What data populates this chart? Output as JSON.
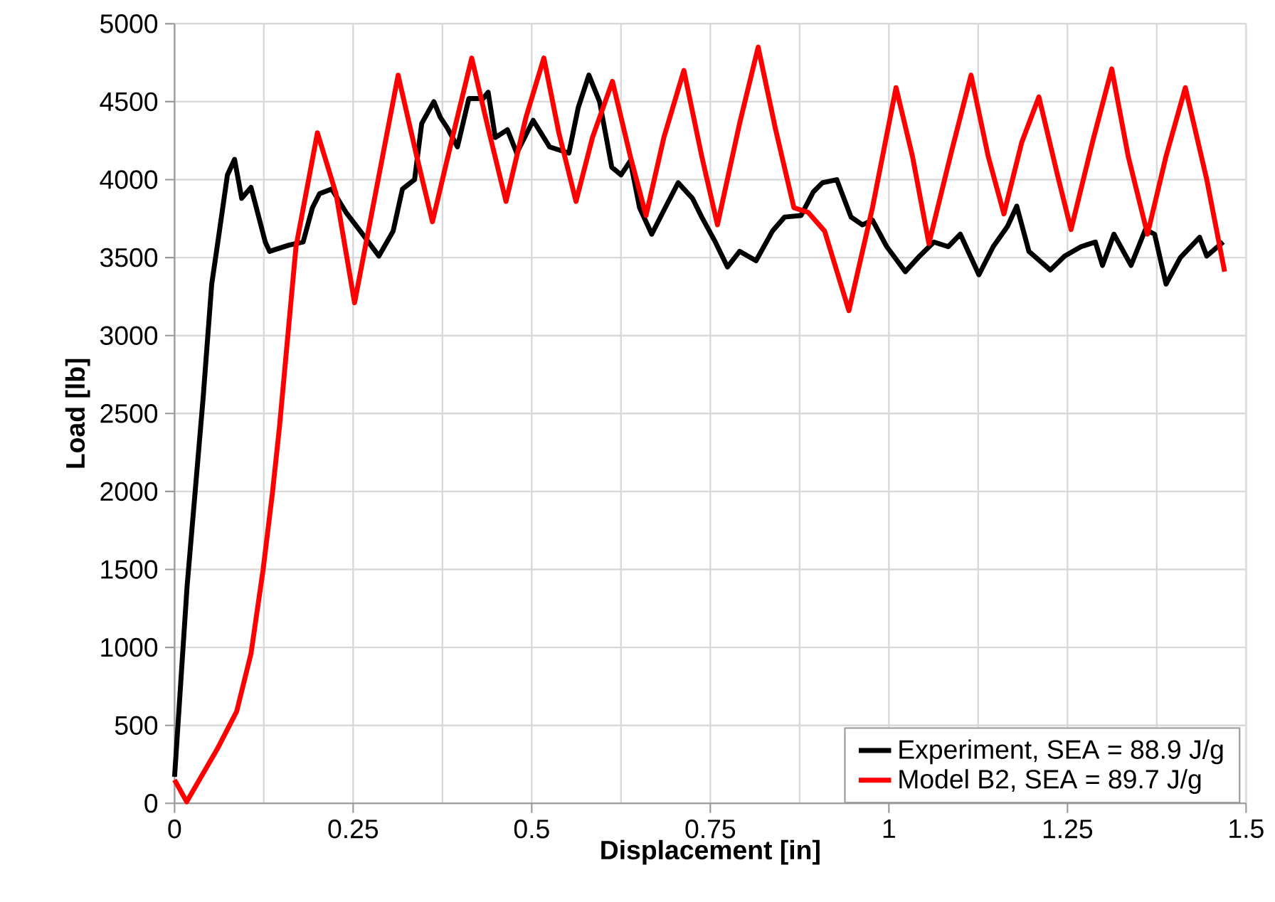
{
  "chart_data": {
    "type": "line",
    "xlabel": "Displacement [in]",
    "ylabel": "Load [lb]",
    "xlim": [
      0,
      1.5
    ],
    "ylim": [
      0,
      5000
    ],
    "xticks": [
      0,
      0.25,
      0.5,
      0.75,
      1,
      1.25,
      1.5
    ],
    "yticks": [
      0,
      500,
      1000,
      1500,
      2000,
      2500,
      3000,
      3500,
      4000,
      4500,
      5000
    ],
    "grid": true,
    "legend": "bottom right",
    "marker": "none",
    "line_style": "solid",
    "series": [
      {
        "name": "Experiment, SEA = 88.9 J/g",
        "color": "#000000",
        "x": [
          0,
          0.0175,
          0.04,
          0.052,
          0.06,
          0.074,
          0.084,
          0.094,
          0.107,
          0.127,
          0.133,
          0.16,
          0.18,
          0.193,
          0.203,
          0.22,
          0.24,
          0.26,
          0.286,
          0.306,
          0.319,
          0.336,
          0.346,
          0.363,
          0.372,
          0.382,
          0.396,
          0.412,
          0.432,
          0.439,
          0.449,
          0.466,
          0.479,
          0.502,
          0.525,
          0.552,
          0.565,
          0.58,
          0.595,
          0.612,
          0.625,
          0.638,
          0.651,
          0.668,
          0.688,
          0.705,
          0.725,
          0.738,
          0.757,
          0.774,
          0.791,
          0.814,
          0.837,
          0.854,
          0.877,
          0.894,
          0.907,
          0.927,
          0.947,
          0.963,
          0.977,
          0.997,
          1.023,
          1.043,
          1.063,
          1.083,
          1.1,
          1.126,
          1.146,
          1.166,
          1.179,
          1.196,
          1.226,
          1.246,
          1.269,
          1.289,
          1.299,
          1.315,
          1.339,
          1.359,
          1.372,
          1.388,
          1.408,
          1.435,
          1.445,
          1.468
        ],
        "values": [
          170,
          1390,
          2600,
          3330,
          3580,
          4030,
          4130,
          3880,
          3950,
          3600,
          3540,
          3580,
          3600,
          3820,
          3910,
          3940,
          3790,
          3670,
          3510,
          3670,
          3940,
          4000,
          4360,
          4500,
          4400,
          4330,
          4210,
          4520,
          4520,
          4560,
          4270,
          4320,
          4170,
          4380,
          4210,
          4170,
          4460,
          4670,
          4500,
          4080,
          4030,
          4120,
          3820,
          3650,
          3830,
          3980,
          3880,
          3760,
          3600,
          3440,
          3540,
          3480,
          3670,
          3760,
          3770,
          3920,
          3980,
          4000,
          3760,
          3710,
          3740,
          3570,
          3410,
          3510,
          3600,
          3570,
          3650,
          3390,
          3570,
          3700,
          3830,
          3540,
          3420,
          3510,
          3570,
          3600,
          3450,
          3650,
          3450,
          3680,
          3650,
          3330,
          3500,
          3630,
          3510,
          3600
        ]
      },
      {
        "name": "Model B2, SEA = 89.7 J/g",
        "color": "#ff0000",
        "x": [
          0,
          0.017,
          0.06,
          0.087,
          0.107,
          0.124,
          0.137,
          0.147,
          0.17,
          0.2,
          0.226,
          0.252,
          0.28,
          0.313,
          0.339,
          0.361,
          0.389,
          0.416,
          0.439,
          0.464,
          0.492,
          0.517,
          0.538,
          0.562,
          0.585,
          0.613,
          0.638,
          0.66,
          0.685,
          0.713,
          0.738,
          0.76,
          0.791,
          0.817,
          0.841,
          0.867,
          0.887,
          0.91,
          0.944,
          0.977,
          1.01,
          1.033,
          1.056,
          1.086,
          1.115,
          1.139,
          1.161,
          1.186,
          1.21,
          1.236,
          1.255,
          1.285,
          1.312,
          1.335,
          1.362,
          1.388,
          1.415,
          1.445,
          1.47
        ],
        "values": [
          150,
          10,
          350,
          590,
          960,
          1500,
          1990,
          2420,
          3570,
          4300,
          3910,
          3210,
          3880,
          4670,
          4150,
          3730,
          4270,
          4780,
          4330,
          3860,
          4400,
          4780,
          4300,
          3860,
          4270,
          4630,
          4150,
          3770,
          4270,
          4700,
          4150,
          3710,
          4360,
          4850,
          4330,
          3820,
          3790,
          3670,
          3160,
          3820,
          4590,
          4150,
          3590,
          4150,
          4670,
          4150,
          3780,
          4240,
          4530,
          4030,
          3680,
          4240,
          4710,
          4150,
          3650,
          4150,
          4590,
          4000,
          3410
        ]
      }
    ]
  }
}
